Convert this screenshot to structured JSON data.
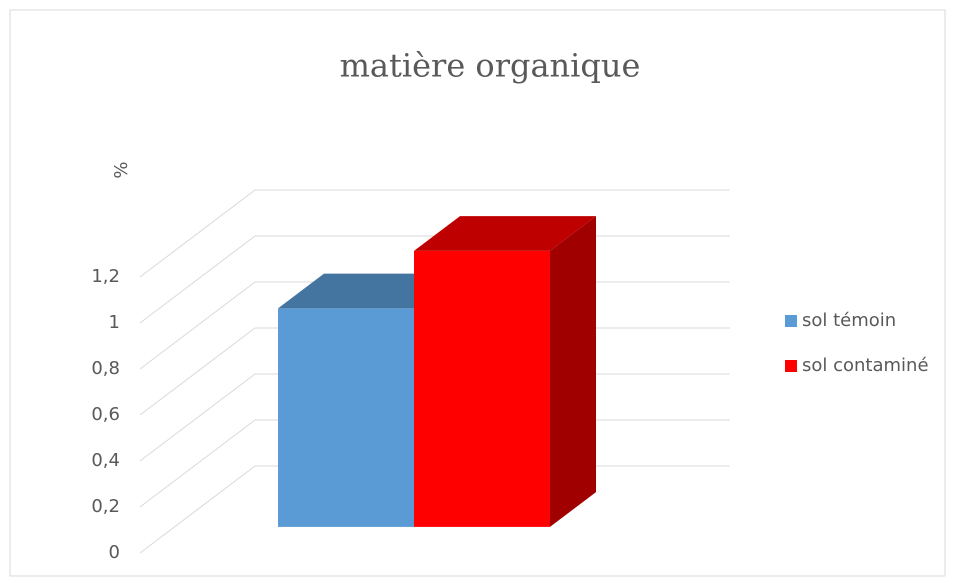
{
  "chart_data": {
    "type": "bar3d",
    "title": "matière organique",
    "y_label": "%",
    "categories": [
      ""
    ],
    "series": [
      {
        "name": "sol témoin",
        "color": "#5b9bd5",
        "values": [
          0.95
        ]
      },
      {
        "name": "sol contaminé",
        "color": "#ff0000",
        "values": [
          1.2
        ]
      }
    ],
    "ylim": [
      0,
      1.2
    ],
    "yticks": [
      0,
      {
        "value": 0.2,
        "label": "0,2"
      },
      {
        "value": 0.4,
        "label": "0,4"
      },
      {
        "value": 0.6,
        "label": "0,6"
      },
      {
        "value": 0.8,
        "label": "0,8"
      },
      1,
      {
        "value": 1.2,
        "label": "1,2"
      }
    ],
    "grid": true,
    "legend": "right"
  }
}
